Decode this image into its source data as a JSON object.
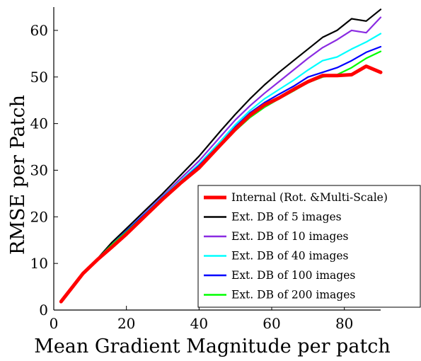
{
  "chart_data": {
    "type": "line",
    "title": "",
    "xlabel": "Mean Gradient Magnitude per patch",
    "ylabel": "RMSE per  Patch",
    "xlim": [
      0,
      90
    ],
    "ylim": [
      0,
      65
    ],
    "xticks": [
      0,
      20,
      40,
      60,
      80
    ],
    "yticks": [
      0,
      10,
      20,
      30,
      40,
      50,
      60
    ],
    "grid": false,
    "legend_position": "bottom-right",
    "series": [
      {
        "name": "Ext. DB of 5 images",
        "color": "#000000",
        "x": [
          2,
          5,
          8,
          12,
          16,
          20,
          26,
          30,
          35,
          40,
          46,
          50,
          54,
          58,
          62,
          66,
          70,
          74,
          78,
          82,
          86,
          90
        ],
        "y": [
          2,
          5,
          8,
          11,
          14.5,
          17.5,
          22,
          25,
          29,
          33,
          38.5,
          42,
          45.3,
          48.3,
          51,
          53.5,
          56,
          58.5,
          60,
          62.5,
          62,
          64.5
        ]
      },
      {
        "name": "Ext. DB of 10 images",
        "color": "#8a2be2",
        "x": [
          2,
          5,
          8,
          12,
          16,
          20,
          26,
          30,
          35,
          40,
          46,
          50,
          54,
          58,
          62,
          66,
          70,
          74,
          78,
          82,
          86,
          90
        ],
        "y": [
          2,
          5,
          8,
          11,
          14,
          17,
          21.5,
          24.5,
          28.3,
          32,
          37.3,
          40.8,
          43.8,
          46.5,
          49,
          51.5,
          54,
          56.3,
          58,
          60,
          59.5,
          62.8
        ]
      },
      {
        "name": "Ext. DB of 40 images",
        "color": "#00ffff",
        "x": [
          2,
          5,
          8,
          12,
          16,
          20,
          26,
          30,
          35,
          40,
          46,
          50,
          54,
          58,
          62,
          66,
          70,
          74,
          78,
          82,
          86,
          90
        ],
        "y": [
          2,
          5,
          8,
          11,
          14,
          17,
          21.3,
          24.3,
          27.8,
          31.3,
          36.3,
          39.8,
          42.8,
          45.3,
          47.3,
          49.3,
          51.5,
          53.5,
          54.3,
          56,
          57.5,
          59.3
        ]
      },
      {
        "name": "Ext. DB of 100 images",
        "color": "#0000ff",
        "x": [
          2,
          5,
          8,
          12,
          16,
          20,
          26,
          30,
          35,
          40,
          46,
          50,
          54,
          58,
          62,
          66,
          70,
          74,
          78,
          82,
          86,
          90
        ],
        "y": [
          2,
          5,
          8,
          11,
          14,
          17,
          21.2,
          24.2,
          27.6,
          31,
          35.8,
          39.3,
          42.3,
          44.5,
          46.3,
          48,
          50,
          51,
          52,
          53.5,
          55.3,
          56.5
        ]
      },
      {
        "name": "Ext. DB of 200 images",
        "color": "#00ff00",
        "x": [
          2,
          5,
          8,
          12,
          16,
          20,
          26,
          30,
          35,
          40,
          46,
          50,
          54,
          58,
          62,
          66,
          70,
          74,
          78,
          82,
          86,
          90
        ],
        "y": [
          2,
          5,
          8,
          11,
          14,
          16.8,
          21,
          24,
          27.3,
          30.5,
          35.3,
          38.5,
          41.3,
          43.5,
          45.3,
          47,
          48.8,
          50,
          50.5,
          52,
          54,
          55.5
        ]
      },
      {
        "name": "Internal (Rot. &Multi-Scale)",
        "color": "#ff0000",
        "x": [
          2,
          5,
          8,
          12,
          16,
          20,
          26,
          30,
          35,
          40,
          46,
          50,
          54,
          58,
          62,
          66,
          70,
          74,
          78,
          82,
          86,
          90
        ],
        "y": [
          1.8,
          4.8,
          7.8,
          10.8,
          13.5,
          16.3,
          20.8,
          23.8,
          27.3,
          30.5,
          35.5,
          38.8,
          41.8,
          44,
          45.5,
          47.3,
          49,
          50.3,
          50.3,
          50.5,
          52.3,
          51
        ]
      }
    ],
    "legend_order": [
      "Internal (Rot. &Multi-Scale)",
      "Ext. DB of 5 images",
      "Ext. DB of 10 images",
      "Ext. DB of 40 images",
      "Ext. DB of 100 images",
      "Ext. DB of 200 images"
    ]
  }
}
